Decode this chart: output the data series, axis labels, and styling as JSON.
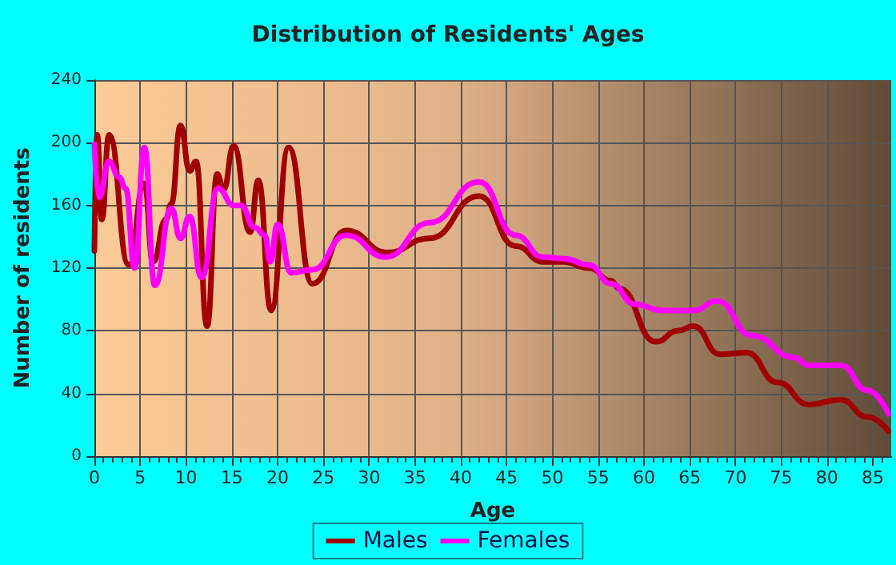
{
  "chart_data": {
    "type": "line",
    "title": "Distribution of Residents' Ages",
    "xlabel": "Age",
    "ylabel": "Number of residents",
    "xlim": [
      0,
      87
    ],
    "xticks": [
      0,
      5,
      10,
      15,
      20,
      25,
      30,
      35,
      40,
      45,
      50,
      55,
      60,
      65,
      70,
      75,
      80,
      85
    ],
    "ylim": [
      0,
      240
    ],
    "yticks": [
      0,
      40,
      80,
      120,
      160,
      200,
      240
    ],
    "grid": true,
    "legend": "bottom",
    "marker": "none",
    "series": [
      {
        "name": "Males",
        "color": "#a00000",
        "x": [
          0,
          0.3,
          0.8,
          1.6,
          3.75,
          5.45,
          6.4,
          7.8,
          8.4,
          9.4,
          10.4,
          11.1,
          12.3,
          13.4,
          14.1,
          15.2,
          17,
          17.9,
          19.3,
          21.2,
          23.8,
          27.5,
          32,
          36.6,
          42,
          46,
          49,
          51.3,
          54,
          56.4,
          57.3,
          61.3,
          63.7,
          65.4,
          68.3,
          71.2,
          74.6,
          78,
          81.5,
          84.4,
          86.7
        ],
        "values": [
          131,
          205,
          151,
          205,
          122,
          174,
          124,
          151,
          161,
          211,
          182,
          188,
          83,
          180,
          170,
          198,
          143,
          176,
          93,
          197,
          110,
          144,
          130,
          139,
          166,
          134,
          124,
          124,
          120,
          112,
          107,
          73,
          80,
          83,
          65,
          66,
          47,
          33,
          36,
          25,
          16
        ]
      },
      {
        "name": "Females",
        "color": "#ff00ff",
        "x": [
          0,
          0.5,
          1.6,
          2.7,
          3.4,
          4.4,
          5.45,
          6.6,
          8.4,
          9.4,
          10.4,
          11.7,
          13.5,
          15.2,
          16,
          17.5,
          18.6,
          19.2,
          20,
          21.5,
          23.8,
          27.5,
          31.8,
          36.6,
          42,
          46,
          49,
          51.3,
          54,
          56.4,
          59,
          61.9,
          65.4,
          68,
          71.8,
          76.4,
          78,
          81.5,
          84.4,
          86.7
        ],
        "values": [
          199,
          165,
          188,
          178,
          171,
          120,
          197,
          109,
          158,
          139,
          153,
          114,
          171,
          160,
          160,
          146,
          141,
          124,
          148,
          117,
          119,
          141,
          127,
          149,
          175,
          141,
          127,
          126,
          122,
          110,
          97,
          93,
          93,
          99,
          77,
          63,
          58,
          58,
          42,
          27
        ]
      }
    ]
  }
}
